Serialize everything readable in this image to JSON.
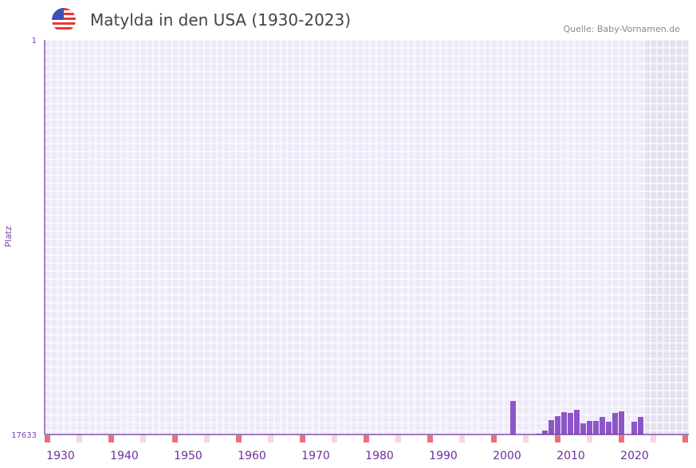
{
  "header": {
    "title": "Matylda in den USA (1930-2023)",
    "source": "Quelle: Baby-Vornamen.de",
    "flag_icon": "us-flag-icon"
  },
  "colors": {
    "bar": "#8e55c8",
    "axis": "#6a2fa0",
    "marker_decade": "#e8707a",
    "marker_half": "#f6d6de",
    "grid_bg": "#efeafa",
    "future_bg": "#e4e0ee"
  },
  "chart_data": {
    "type": "bar",
    "title": "Matylda in den USA (1930-2023)",
    "ylabel": "Platz",
    "ytick_top": "1",
    "ytick_bottom": "17633",
    "ylim": [
      17633,
      1
    ],
    "xlim": [
      1928,
      2028
    ],
    "xticks": [
      "1930",
      "1940",
      "1950",
      "1960",
      "1970",
      "1980",
      "1990",
      "2000",
      "2010",
      "2020"
    ],
    "x": [
      2001,
      2005,
      2006,
      2007,
      2008,
      2009,
      2010,
      2011,
      2012,
      2013,
      2014,
      2015,
      2016,
      2017,
      2018,
      2020,
      2021
    ],
    "values": [
      16137,
      17597,
      17455,
      16992,
      16814,
      16636,
      16671,
      16529,
      17134,
      17027,
      17027,
      16849,
      17063,
      16671,
      16600,
      17063,
      16849
    ],
    "shaded_from": 2022
  }
}
